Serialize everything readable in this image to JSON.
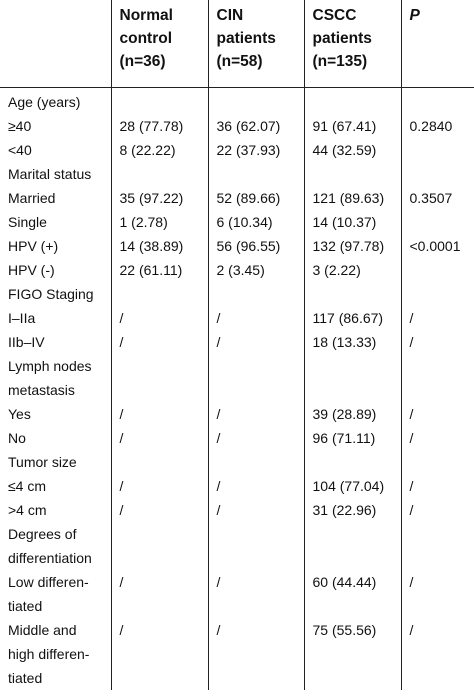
{
  "headers": [
    "",
    "Normal\ncontrol\n(n=36)",
    "CIN\npatients\n(n=58)",
    "CSCC\npatients\n(n=135)",
    "P"
  ],
  "rows": [
    [
      "Age (years)",
      "",
      "",
      "",
      ""
    ],
    [
      "≥40",
      "28 (77.78)",
      "36 (62.07)",
      "91 (67.41)",
      "0.2840"
    ],
    [
      "<40",
      "8 (22.22)",
      "22 (37.93)",
      "44 (32.59)",
      ""
    ],
    [
      "Marital status",
      "",
      "",
      "",
      ""
    ],
    [
      "Married",
      "35 (97.22)",
      "52 (89.66)",
      "121 (89.63)",
      "0.3507"
    ],
    [
      "Single",
      "1 (2.78)",
      "6 (10.34)",
      "14 (10.37)",
      ""
    ],
    [
      "HPV (+)",
      "14 (38.89)",
      "56 (96.55)",
      "132 (97.78)",
      "<0.0001"
    ],
    [
      "HPV (-)",
      "22 (61.11)",
      "2 (3.45)",
      "3 (2.22)",
      ""
    ],
    [
      "FIGO Staging",
      "",
      "",
      "",
      ""
    ],
    [
      "I–IIa",
      "/",
      "/",
      "117 (86.67)",
      "/"
    ],
    [
      "IIb–IV",
      "/",
      "/",
      "18 (13.33)",
      "/"
    ],
    [
      "Lymph nodes\nmetastasis",
      "",
      "",
      "",
      ""
    ],
    [
      "Yes",
      "/",
      "/",
      "39 (28.89)",
      "/"
    ],
    [
      "No",
      "/",
      "/",
      "96 (71.11)",
      "/"
    ],
    [
      "Tumor size",
      "",
      "",
      "",
      ""
    ],
    [
      "  ≤4 cm",
      "/",
      "/",
      "104 (77.04)",
      "/"
    ],
    [
      "  >4 cm",
      "/",
      "/",
      "31 (22.96)",
      "/"
    ],
    [
      "Degrees of\ndifferentiation",
      "",
      "",
      "",
      ""
    ],
    [
      "Low differen-\ntiated",
      "/",
      "/",
      "60 (44.44)",
      "/"
    ],
    [
      "Middle and\nhigh differen-\ntiated",
      "/",
      "/",
      "75 (55.56)",
      "/"
    ]
  ]
}
